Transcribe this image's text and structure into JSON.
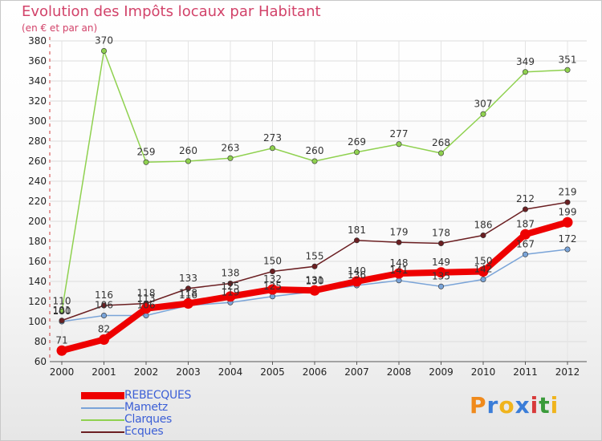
{
  "chart_data": {
    "type": "line",
    "title": "Evolution des Impôts locaux par Habitant",
    "subtitle": "(en € et par an)",
    "xlabel": "",
    "ylabel": "",
    "categories": [
      "2000",
      "2001",
      "2002",
      "2003",
      "2004",
      "2005",
      "2006",
      "2007",
      "2008",
      "2009",
      "2010",
      "2011",
      "2012"
    ],
    "ylim": [
      60,
      380
    ],
    "yticks": [
      60,
      80,
      100,
      120,
      140,
      160,
      180,
      200,
      220,
      240,
      260,
      280,
      300,
      320,
      340,
      360,
      380
    ],
    "grid": true,
    "legend_position": "bottom-left",
    "series": [
      {
        "name": "Mametz",
        "color": "#7aa4d8",
        "values": [
          100,
          106,
          106,
          116,
          119,
          125,
          130,
          136,
          141,
          135,
          142,
          167,
          172
        ],
        "labels": [
          "100",
          "106",
          "106",
          "116",
          "119",
          "125",
          "130",
          "136",
          "141",
          "135",
          "142",
          "167",
          "172"
        ]
      },
      {
        "name": "Clarques",
        "color": "#8fd14f",
        "values": [
          110,
          370,
          259,
          260,
          263,
          273,
          260,
          269,
          277,
          268,
          307,
          349,
          351
        ],
        "labels": [
          "110",
          "370",
          "259",
          "260",
          "263",
          "273",
          "260",
          "269",
          "277",
          "268",
          "307",
          "349",
          "351"
        ]
      },
      {
        "name": "Ecques",
        "color": "#6b1f22",
        "values": [
          101,
          116,
          118,
          133,
          138,
          150,
          155,
          181,
          179,
          178,
          186,
          212,
          219
        ],
        "labels": [
          "101",
          "116",
          "118",
          "133",
          "138",
          "150",
          "155",
          "181",
          "179",
          "178",
          "186",
          "212",
          "219"
        ]
      },
      {
        "name": "REBECQUES",
        "color": "#ee0000",
        "values": [
          71,
          82,
          113,
          118,
          125,
          132,
          131,
          140,
          148,
          149,
          150,
          187,
          199
        ],
        "labels": [
          "71",
          "82",
          "113",
          "118",
          "125",
          "132",
          "131",
          "140",
          "148",
          "149",
          "150",
          "187",
          "199"
        ]
      }
    ]
  },
  "legend": {
    "items": [
      {
        "label": "REBECQUES",
        "color": "#ee0000"
      },
      {
        "label": "Mametz",
        "color": "#7aa4d8"
      },
      {
        "label": "Clarques",
        "color": "#8fd14f"
      },
      {
        "label": "Ecques",
        "color": "#6b1f22"
      }
    ]
  },
  "brand": {
    "letters": [
      "P",
      "r",
      "o",
      "x",
      "i",
      "t",
      "i"
    ],
    "colors": [
      "#f08a1c",
      "#3a7dd8",
      "#f0b41c",
      "#3a7dd8",
      "#d83a3a",
      "#3a9a3a",
      "#f0b41c"
    ]
  }
}
